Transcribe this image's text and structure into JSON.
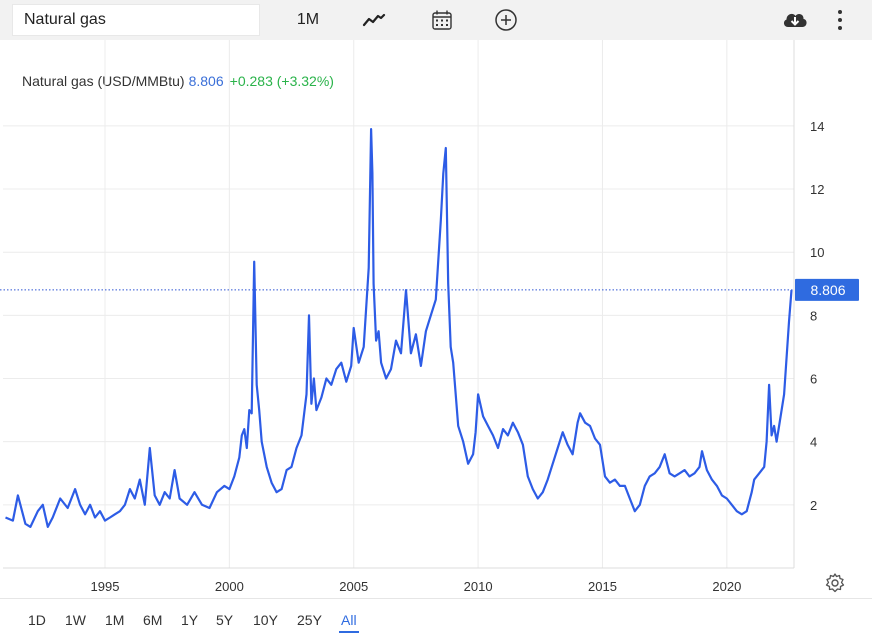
{
  "toolbar": {
    "search_value": "Natural gas",
    "interval": "1M",
    "icons": [
      "chart-line-icon",
      "calendar-icon",
      "plus-circle-icon",
      "cloud-download-icon",
      "more-vertical-icon"
    ]
  },
  "legend": {
    "name": "Natural gas (USD/MMBtu)",
    "value": "8.806",
    "change": "+0.283 (+3.32%)"
  },
  "price_tag": "8.806",
  "ranges": [
    "1D",
    "1W",
    "1M",
    "6M",
    "1Y",
    "5Y",
    "10Y",
    "25Y",
    "All"
  ],
  "active_range": "All",
  "colors": {
    "line": "#2d5ce6",
    "accent": "#2f6be0",
    "positive": "#2ab34a",
    "value": "#3a6fd8",
    "price_tag_bg": "#2f6be0"
  },
  "chart_data": {
    "type": "line",
    "xlabel": "",
    "ylabel": "",
    "xlim": [
      1990.9,
      2022.7
    ],
    "ylim": [
      0,
      15.2
    ],
    "x_ticks": [
      1995,
      2000,
      2005,
      2010,
      2015,
      2020
    ],
    "y_ticks": [
      2,
      4,
      6,
      8,
      10,
      12,
      14
    ],
    "last_value": 8.806,
    "grid": true,
    "y_axis_position": "right",
    "series": [
      {
        "x": [
          1991.0,
          1991.3,
          1991.5,
          1991.8,
          1992.0,
          1992.3,
          1992.5,
          1992.7,
          1992.9,
          1993.2,
          1993.5,
          1993.8,
          1994.0,
          1994.2,
          1994.4,
          1994.6,
          1994.8,
          1995.0,
          1995.2,
          1995.4,
          1995.6,
          1995.8,
          1996.0,
          1996.2,
          1996.4,
          1996.6,
          1996.8,
          1997.0,
          1997.2,
          1997.4,
          1997.6,
          1997.8,
          1998.0,
          1998.3,
          1998.6,
          1998.9,
          1999.2,
          1999.5,
          1999.8,
          2000.0,
          2000.2,
          2000.4,
          2000.5,
          2000.6,
          2000.7,
          2000.8,
          2000.9,
          2001.0,
          2001.1,
          2001.2,
          2001.3,
          2001.5,
          2001.7,
          2001.9,
          2002.1,
          2002.3,
          2002.5,
          2002.7,
          2002.9,
          2003.1,
          2003.2,
          2003.3,
          2003.4,
          2003.5,
          2003.7,
          2003.9,
          2004.1,
          2004.3,
          2004.5,
          2004.7,
          2004.9,
          2005.0,
          2005.2,
          2005.4,
          2005.6,
          2005.7,
          2005.75,
          2005.8,
          2005.9,
          2006.0,
          2006.1,
          2006.3,
          2006.5,
          2006.7,
          2006.9,
          2007.1,
          2007.3,
          2007.5,
          2007.7,
          2007.9,
          2008.1,
          2008.3,
          2008.5,
          2008.6,
          2008.7,
          2008.8,
          2008.9,
          2009.0,
          2009.2,
          2009.4,
          2009.6,
          2009.8,
          2009.9,
          2010.0,
          2010.2,
          2010.4,
          2010.6,
          2010.8,
          2011.0,
          2011.2,
          2011.4,
          2011.6,
          2011.8,
          2012.0,
          2012.2,
          2012.4,
          2012.6,
          2012.8,
          2013.0,
          2013.2,
          2013.4,
          2013.6,
          2013.8,
          2014.0,
          2014.1,
          2014.3,
          2014.5,
          2014.7,
          2014.9,
          2015.1,
          2015.3,
          2015.5,
          2015.7,
          2015.9,
          2016.1,
          2016.3,
          2016.5,
          2016.7,
          2016.9,
          2017.1,
          2017.3,
          2017.5,
          2017.7,
          2017.9,
          2018.1,
          2018.3,
          2018.5,
          2018.7,
          2018.9,
          2019.0,
          2019.2,
          2019.4,
          2019.6,
          2019.8,
          2020.0,
          2020.2,
          2020.4,
          2020.6,
          2020.8,
          2021.0,
          2021.1,
          2021.3,
          2021.5,
          2021.6,
          2021.7,
          2021.8,
          2021.9,
          2022.0,
          2022.1,
          2022.3,
          2022.5,
          2022.6
        ],
        "y": [
          1.6,
          1.5,
          2.3,
          1.4,
          1.3,
          1.8,
          2.0,
          1.3,
          1.6,
          2.2,
          1.9,
          2.5,
          2.0,
          1.7,
          2.0,
          1.6,
          1.8,
          1.5,
          1.6,
          1.7,
          1.8,
          2.0,
          2.5,
          2.2,
          2.8,
          2.0,
          3.8,
          2.3,
          2.0,
          2.4,
          2.2,
          3.1,
          2.2,
          2.0,
          2.4,
          2.0,
          1.9,
          2.4,
          2.6,
          2.5,
          2.9,
          3.5,
          4.2,
          4.4,
          3.8,
          5.0,
          4.9,
          9.7,
          5.8,
          5.0,
          4.0,
          3.2,
          2.7,
          2.4,
          2.5,
          3.1,
          3.2,
          3.8,
          4.2,
          5.5,
          8.0,
          5.2,
          6.0,
          5.0,
          5.4,
          6.0,
          5.8,
          6.3,
          6.5,
          5.9,
          6.4,
          7.6,
          6.5,
          7.0,
          9.5,
          13.9,
          12.5,
          9.0,
          7.2,
          7.5,
          6.5,
          6.0,
          6.3,
          7.2,
          6.8,
          8.8,
          6.8,
          7.4,
          6.4,
          7.5,
          8.0,
          8.5,
          11.0,
          12.5,
          13.3,
          9.0,
          7.0,
          6.5,
          4.5,
          4.0,
          3.3,
          3.6,
          4.3,
          5.5,
          4.8,
          4.5,
          4.2,
          3.8,
          4.4,
          4.2,
          4.6,
          4.3,
          3.9,
          2.9,
          2.5,
          2.2,
          2.4,
          2.8,
          3.3,
          3.8,
          4.3,
          3.9,
          3.6,
          4.6,
          4.9,
          4.6,
          4.5,
          4.1,
          3.9,
          2.9,
          2.7,
          2.8,
          2.6,
          2.6,
          2.2,
          1.8,
          2.0,
          2.6,
          2.9,
          3.0,
          3.2,
          3.6,
          3.0,
          2.9,
          3.0,
          3.1,
          2.9,
          3.0,
          3.2,
          3.7,
          3.1,
          2.8,
          2.6,
          2.3,
          2.2,
          2.0,
          1.8,
          1.7,
          1.8,
          2.4,
          2.8,
          3.0,
          3.2,
          4.0,
          5.8,
          4.2,
          4.5,
          4.0,
          4.5,
          5.5,
          7.8,
          8.8
        ]
      }
    ]
  }
}
